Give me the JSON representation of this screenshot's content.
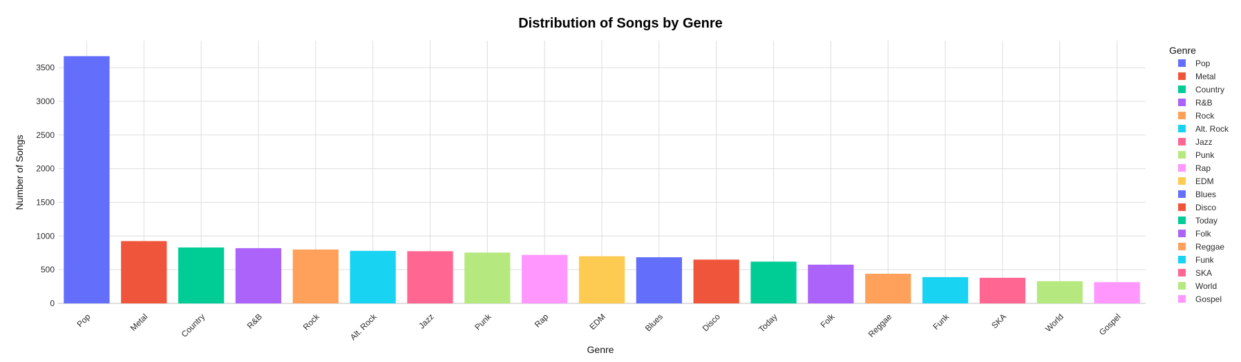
{
  "chart_data": {
    "type": "bar",
    "title": "Distribution of Songs by Genre",
    "xlabel": "Genre",
    "ylabel": "Number of Songs",
    "ylim": [
      0,
      3900
    ],
    "yticks": [
      0,
      500,
      1000,
      1500,
      2000,
      2500,
      3000,
      3500
    ],
    "grid": true,
    "legend": {
      "title": "Genre",
      "placement": "right"
    },
    "categories": [
      "Pop",
      "Metal",
      "Country",
      "R&B",
      "Rock",
      "Alt. Rock",
      "Jazz",
      "Punk",
      "Rap",
      "EDM",
      "Blues",
      "Disco",
      "Today",
      "Folk",
      "Reggae",
      "Funk",
      "SKA",
      "World",
      "Gospel"
    ],
    "values": [
      3670,
      925,
      830,
      820,
      800,
      780,
      775,
      755,
      720,
      700,
      685,
      650,
      620,
      575,
      440,
      390,
      380,
      330,
      315
    ],
    "colors": [
      "#636efa",
      "#ef553b",
      "#00cc96",
      "#ab63fa",
      "#ffa15a",
      "#19d3f3",
      "#ff6692",
      "#b6e880",
      "#ff97ff",
      "#fecb52",
      "#636efa",
      "#ef553b",
      "#00cc96",
      "#ab63fa",
      "#ffa15a",
      "#19d3f3",
      "#ff6692",
      "#b6e880",
      "#ff97ff"
    ]
  }
}
